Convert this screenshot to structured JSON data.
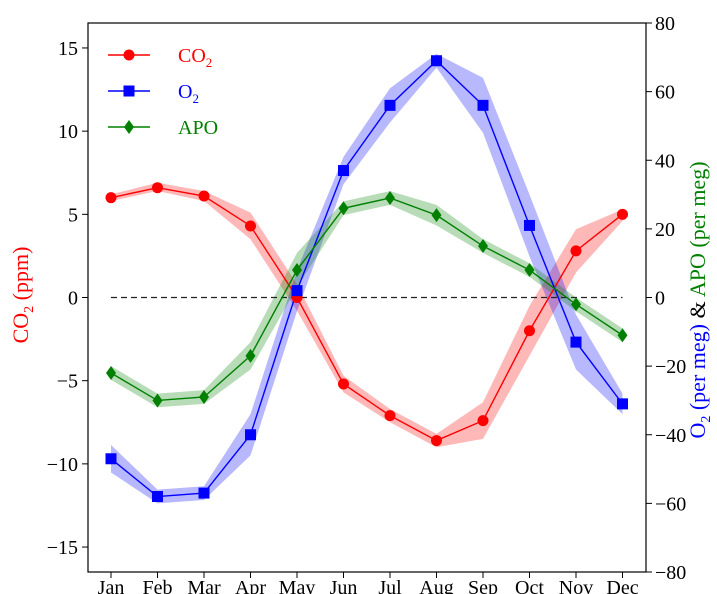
{
  "chart_data": {
    "type": "line",
    "categories": [
      "Jan",
      "Feb",
      "Mar",
      "Apr",
      "May",
      "Jun",
      "Jul",
      "Aug",
      "Sep",
      "Oct",
      "Nov",
      "Dec"
    ],
    "left_axis": {
      "label_main": "CO",
      "label_sub": "2",
      "label_unit": " (ppm)",
      "color": "#ff0000",
      "ylim": [
        -16.5,
        16.5
      ],
      "ticks": [
        -15,
        -10,
        -5,
        0,
        5,
        10,
        15
      ],
      "tick_labels": [
        "−15",
        "−10",
        "−5",
        "0",
        "5",
        "10",
        "15"
      ]
    },
    "right_axis": {
      "label_o2_main": "O",
      "label_o2_sub": "2",
      "label_o2_unit": " (per meg)",
      "label_amp": " & ",
      "label_apo": "APO (per meg)",
      "o2_color": "#0000ff",
      "apo_color": "#008000",
      "amp_color": "#000000",
      "ylim": [
        -80,
        80
      ],
      "ticks": [
        -80,
        -60,
        -40,
        -20,
        0,
        20,
        40,
        60,
        80
      ],
      "tick_labels": [
        "−80",
        "−60",
        "−40",
        "−20",
        "0",
        "20",
        "40",
        "60",
        "80"
      ]
    },
    "series": [
      {
        "name": "CO",
        "name_sub": "2",
        "axis": "left",
        "color": "#ff0000",
        "marker": "circle",
        "values": [
          6.0,
          6.6,
          6.1,
          4.3,
          0.0,
          -5.2,
          -7.1,
          -8.6,
          -7.4,
          -2.0,
          2.8,
          5.0
        ],
        "lower": [
          5.8,
          6.4,
          5.8,
          3.5,
          -0.8,
          -5.7,
          -7.5,
          -9.0,
          -8.5,
          -3.5,
          1.5,
          4.6
        ],
        "upper": [
          6.2,
          6.9,
          6.4,
          5.1,
          0.8,
          -4.7,
          -6.7,
          -8.2,
          -6.3,
          -0.5,
          4.1,
          5.3
        ]
      },
      {
        "name": "O",
        "name_sub": "2",
        "axis": "right",
        "color": "#0000ff",
        "marker": "square",
        "values": [
          -47,
          -58,
          -57,
          -40,
          2,
          37,
          56,
          69,
          56,
          21,
          -13,
          -31
        ],
        "lower": [
          -51,
          -60,
          -59,
          -46,
          -4,
          33,
          51,
          67,
          48,
          12,
          -21,
          -34
        ],
        "upper": [
          -43,
          -56,
          -55,
          -34,
          8,
          41,
          61,
          71,
          64,
          30,
          -5,
          -28
        ]
      },
      {
        "name": "APO",
        "name_sub": "",
        "axis": "right",
        "color": "#008000",
        "marker": "diamond",
        "values": [
          -22,
          -30,
          -29,
          -17,
          8,
          26,
          29,
          24,
          15,
          8,
          -2,
          -11
        ],
        "lower": [
          -24,
          -32,
          -31,
          -21,
          3,
          24,
          27,
          21,
          13,
          6,
          -4,
          -13
        ],
        "upper": [
          -20,
          -28,
          -27,
          -13,
          13,
          28,
          31,
          27,
          17,
          10,
          0,
          -9
        ]
      }
    ],
    "zero_line": true,
    "legend_position": "top-left",
    "grid": false
  }
}
